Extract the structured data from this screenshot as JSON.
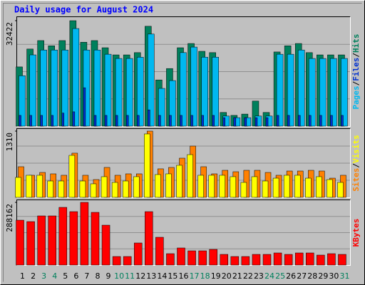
{
  "chart_data": {
    "type": "bar",
    "title": "Daily usage for August 2024",
    "categories": [
      "1",
      "2",
      "3",
      "4",
      "5",
      "6",
      "7",
      "8",
      "9",
      "10",
      "11",
      "12",
      "13",
      "14",
      "15",
      "16",
      "17",
      "18",
      "19",
      "20",
      "21",
      "22",
      "23",
      "24",
      "25",
      "26",
      "27",
      "28",
      "29",
      "30",
      "31"
    ],
    "category_colors": [
      "#000000",
      "#000000",
      "#00805c",
      "#00805c",
      "#000000",
      "#000000",
      "#000000",
      "#000000",
      "#000000",
      "#00805c",
      "#00805c",
      "#000000",
      "#000000",
      "#000000",
      "#000000",
      "#000000",
      "#00805c",
      "#00805c",
      "#000000",
      "#000000",
      "#000000",
      "#000000",
      "#000000",
      "#00805c",
      "#00805c",
      "#000000",
      "#000000",
      "#000000",
      "#000000",
      "#000000",
      "#00805c"
    ],
    "legend_separator": "/",
    "panels": [
      {
        "ylim": [
          0,
          32422
        ],
        "yticks": [
          32422
        ],
        "series": [
          {
            "name": "Hits",
            "color": "#00805c",
            "values": [
              18200,
              23700,
              26300,
              24700,
              26300,
              32422,
              25800,
              26300,
              24100,
              21900,
              21900,
              22600,
              30700,
              14200,
              17700,
              24100,
              25400,
              23000,
              22600,
              4200,
              3300,
              3700,
              7700,
              4200,
              22800,
              24700,
              25400,
              22600,
              21900,
              21900,
              21900
            ]
          },
          {
            "name": "Files",
            "color": "#0030d0",
            "values": [
              3300,
              3300,
              3300,
              3300,
              4000,
              4400,
              11800,
              3300,
              3300,
              3300,
              3300,
              3300,
              5000,
              3300,
              3300,
              3300,
              3300,
              3300,
              3300,
              2600,
              2600,
              2600,
              2600,
              2600,
              3300,
              3300,
              3300,
              3300,
              3300,
              3300,
              3300
            ]
          },
          {
            "name": "Pages",
            "color": "#00b8f0",
            "values": [
              15500,
              21900,
              23400,
              23400,
              23400,
              30000,
              23400,
              23400,
              22100,
              20800,
              20800,
              21200,
              28300,
              11600,
              14000,
              22600,
              24300,
              21200,
              21200,
              3100,
              2600,
              2600,
              3100,
              3100,
              22100,
              22100,
              23400,
              20800,
              20800,
              20800,
              20800
            ]
          }
        ]
      },
      {
        "ylim": [
          0,
          1310
        ],
        "yticks": [
          1310
        ],
        "series": [
          {
            "name": "Visits",
            "color": "#ffff00",
            "values": [
              395,
              437,
              437,
              324,
              324,
              831,
              324,
              268,
              409,
              296,
              324,
              409,
              1254,
              451,
              465,
              634,
              845,
              437,
              437,
              437,
              409,
              296,
              409,
              324,
              380,
              437,
              437,
              380,
              409,
              352,
              296
            ]
          },
          {
            "name": "Sites",
            "color": "#ff8000",
            "values": [
              606,
              437,
              493,
              465,
              437,
              874,
              437,
              352,
              592,
              437,
              465,
              465,
              1310,
              564,
              592,
              775,
              1014,
              606,
              465,
              535,
              507,
              535,
              535,
              493,
              437,
              521,
              521,
              535,
              521,
              380,
              437
            ]
          }
        ]
      },
      {
        "ylim": [
          0,
          288162
        ],
        "yticks": [
          288162
        ],
        "series": [
          {
            "name": "KBytes",
            "color": "#ff0000",
            "values": [
              206262,
              199714,
              225906,
              225906,
              265194,
              245550,
              288162,
              242276,
              183344,
              39288,
              39288,
              101494,
              245550,
              127686,
              52384,
              78576,
              65480,
              65480,
              72028,
              49110,
              39288,
              39288,
              49110,
              49110,
              55658,
              49110,
              55658,
              55658,
              45836,
              52384,
              49110
            ]
          }
        ]
      }
    ]
  }
}
